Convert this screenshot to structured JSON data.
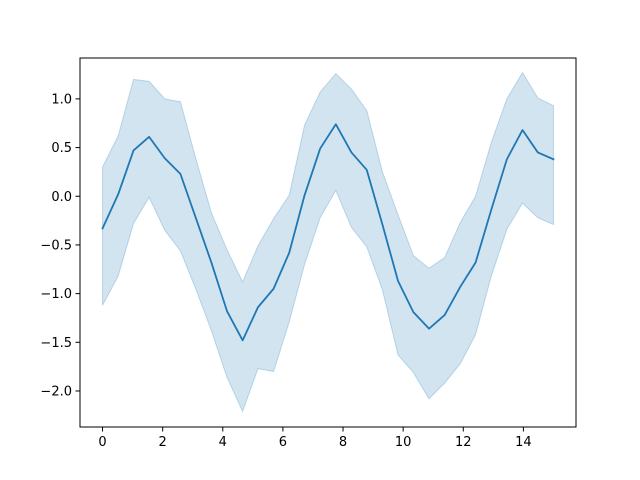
{
  "chart_data": {
    "type": "line",
    "title": "",
    "xlabel": "",
    "ylabel": "",
    "xlim": [
      -0.75,
      15.75
    ],
    "ylim": [
      -2.37,
      1.42
    ],
    "x_ticks": [
      0,
      2,
      4,
      6,
      8,
      10,
      12,
      14
    ],
    "x_tick_labels": [
      "0",
      "2",
      "4",
      "6",
      "8",
      "10",
      "12",
      "14"
    ],
    "y_ticks": [
      1.0,
      0.5,
      0.0,
      -0.5,
      -1.0,
      -1.5,
      -2.0
    ],
    "y_tick_labels": [
      "1.0",
      "0.5",
      "0.0",
      "−0.5",
      "−1.0",
      "−1.5",
      "−2.0"
    ],
    "grid": false,
    "colors": {
      "line": "#1f77b4",
      "band": "#1f77b4"
    },
    "series": [
      {
        "x": [
          0,
          0.52,
          1.03,
          1.55,
          2.07,
          2.59,
          3.1,
          3.62,
          4.14,
          4.66,
          5.17,
          5.69,
          6.21,
          6.72,
          7.24,
          7.76,
          8.28,
          8.79,
          9.31,
          9.83,
          10.34,
          10.86,
          11.38,
          11.9,
          12.41,
          12.93,
          13.45,
          13.97,
          14.48,
          15.0
        ],
        "y": [
          -0.33,
          0.02,
          0.47,
          0.61,
          0.39,
          0.23,
          -0.22,
          -0.68,
          -1.18,
          -1.48,
          -1.14,
          -0.95,
          -0.58,
          0.01,
          0.49,
          0.74,
          0.45,
          0.27,
          -0.29,
          -0.87,
          -1.19,
          -1.36,
          -1.22,
          -0.93,
          -0.68,
          -0.14,
          0.38,
          0.68,
          0.45,
          0.38
        ],
        "lower": [
          -1.12,
          -0.82,
          -0.28,
          -0.01,
          -0.35,
          -0.56,
          -0.95,
          -1.38,
          -1.86,
          -2.21,
          -1.77,
          -1.8,
          -1.29,
          -0.7,
          -0.22,
          0.06,
          -0.32,
          -0.52,
          -0.96,
          -1.63,
          -1.81,
          -2.08,
          -1.92,
          -1.72,
          -1.42,
          -0.82,
          -0.34,
          -0.07,
          -0.22,
          -0.29
        ],
        "upper": [
          0.3,
          0.62,
          1.2,
          1.18,
          1.0,
          0.97,
          0.39,
          -0.17,
          -0.55,
          -0.88,
          -0.51,
          -0.23,
          0.01,
          0.73,
          1.07,
          1.26,
          1.1,
          0.88,
          0.25,
          -0.19,
          -0.61,
          -0.74,
          -0.63,
          -0.27,
          0.0,
          0.55,
          1.0,
          1.27,
          1.01,
          0.93
        ]
      }
    ]
  }
}
